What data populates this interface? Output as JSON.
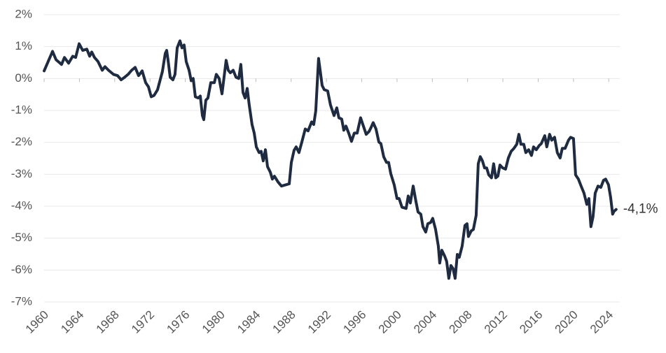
{
  "chart_data": {
    "type": "line",
    "x": [
      1960.0,
      1960.95,
      1961.35,
      1961.98,
      1962.3,
      1962.78,
      1963.25,
      1963.57,
      1963.97,
      1964.37,
      1964.84,
      1965.16,
      1965.4,
      1965.71,
      1966.11,
      1966.59,
      1966.9,
      1967.3,
      1967.86,
      1968.33,
      1968.73,
      1969.13,
      1969.52,
      1969.92,
      1970.32,
      1970.71,
      1971.11,
      1971.51,
      1971.83,
      1972.14,
      1972.46,
      1972.86,
      1973.41,
      1973.73,
      1973.89,
      1974.05,
      1974.29,
      1974.6,
      1974.84,
      1975.08,
      1975.4,
      1975.63,
      1975.87,
      1976.11,
      1976.43,
      1976.67,
      1976.9,
      1977.14,
      1977.46,
      1977.7,
      1977.94,
      1978.1,
      1978.33,
      1978.57,
      1978.89,
      1979.29,
      1979.52,
      1979.84,
      1980.16,
      1980.63,
      1980.87,
      1981.11,
      1981.43,
      1981.75,
      1982.06,
      1982.3,
      1982.54,
      1982.78,
      1983.02,
      1983.25,
      1983.57,
      1983.81,
      1984.05,
      1984.37,
      1984.6,
      1984.84,
      1985.08,
      1985.32,
      1985.63,
      1985.87,
      1986.11,
      1986.51,
      1986.9,
      1987.38,
      1987.78,
      1988.02,
      1988.33,
      1988.57,
      1988.89,
      1989.21,
      1989.6,
      1989.92,
      1990.32,
      1990.56,
      1990.79,
      1991.11,
      1991.35,
      1991.51,
      1991.75,
      1992.14,
      1992.46,
      1992.86,
      1993.17,
      1993.41,
      1993.73,
      1993.97,
      1994.21,
      1994.52,
      1994.84,
      1995.16,
      1995.48,
      1995.87,
      1996.19,
      1996.51,
      1996.83,
      1997.06,
      1997.3,
      1997.62,
      1997.94,
      1998.17,
      1998.49,
      1998.81,
      1999.05,
      1999.29,
      1999.68,
      2000.0,
      2000.24,
      2000.56,
      2001.03,
      2001.27,
      2001.51,
      2001.83,
      2002.14,
      2002.38,
      2002.7,
      2002.94,
      2003.25,
      2003.49,
      2003.81,
      2004.05,
      2004.37,
      2004.68,
      2004.84,
      2005.08,
      2005.4,
      2005.63,
      2005.87,
      2006.11,
      2006.35,
      2006.59,
      2006.83,
      2007.06,
      2007.38,
      2007.7,
      2007.94,
      2008.1,
      2008.41,
      2008.65,
      2008.97,
      2009.21,
      2009.44,
      2009.68,
      2009.92,
      2010.16,
      2010.4,
      2010.71,
      2010.95,
      2011.19,
      2011.43,
      2011.67,
      2011.98,
      2012.3,
      2012.62,
      2012.94,
      2013.25,
      2013.57,
      2013.81,
      2014.05,
      2014.37,
      2014.6,
      2014.92,
      2015.24,
      2015.48,
      2015.79,
      2016.11,
      2016.35,
      2016.75,
      2016.98,
      2017.3,
      2017.54,
      2017.86,
      2018.17,
      2018.49,
      2018.73,
      2019.05,
      2019.44,
      2019.68,
      2020.0,
      2020.24,
      2020.56,
      2020.87,
      2021.19,
      2021.51,
      2021.75,
      2021.98,
      2022.22,
      2022.46,
      2022.78,
      2023.1,
      2023.41,
      2023.65,
      2023.97,
      2024.21,
      2024.44,
      2024.6,
      2024.84
    ],
    "values": [
      0.24,
      0.85,
      0.59,
      0.44,
      0.66,
      0.48,
      0.7,
      0.66,
      1.09,
      0.88,
      0.92,
      0.7,
      0.83,
      0.66,
      0.53,
      0.26,
      0.37,
      0.26,
      0.13,
      0.09,
      -0.04,
      0.04,
      0.13,
      0.26,
      0.35,
      0.09,
      0.24,
      -0.13,
      -0.26,
      -0.57,
      -0.53,
      -0.35,
      0.22,
      0.79,
      0.88,
      0.57,
      0.04,
      -0.04,
      0.13,
      0.96,
      1.18,
      0.96,
      1.05,
      0.53,
      0.26,
      -0.07,
      0,
      -0.57,
      -0.61,
      -0.55,
      -1.16,
      -1.29,
      -0.68,
      -0.61,
      -0.13,
      -0.13,
      0.13,
      0,
      -0.48,
      0.57,
      0.26,
      0.18,
      0.26,
      0.04,
      0,
      0.44,
      -0.44,
      -0.61,
      -0.31,
      -0.83,
      -1.44,
      -1.71,
      -2.14,
      -2.32,
      -2.28,
      -2.58,
      -2.23,
      -2.76,
      -2.93,
      -3.15,
      -3.06,
      -3.24,
      -3.37,
      -3.33,
      -3.3,
      -2.63,
      -2.25,
      -2.14,
      -2.32,
      -1.99,
      -1.58,
      -1.64,
      -1.36,
      -1.44,
      -1.01,
      0.63,
      0.13,
      -0.22,
      -0.35,
      -0.39,
      -0.83,
      -1.16,
      -0.92,
      -1.23,
      -1.27,
      -1.62,
      -1.49,
      -1.71,
      -1.97,
      -1.71,
      -1.71,
      -1.23,
      -1.49,
      -1.75,
      -1.66,
      -1.53,
      -1.38,
      -1.58,
      -1.99,
      -2.04,
      -2.45,
      -2.63,
      -2.63,
      -2.98,
      -3.33,
      -3.76,
      -3.76,
      -4.03,
      -4.07,
      -3.68,
      -3.9,
      -3.37,
      -3.85,
      -4.18,
      -4.25,
      -4.64,
      -4.81,
      -4.55,
      -4.51,
      -4.38,
      -4.73,
      -5.25,
      -5.78,
      -5.38,
      -5.56,
      -5.73,
      -6.26,
      -5.86,
      -5.95,
      -6.26,
      -5.51,
      -5.6,
      -5.25,
      -4.6,
      -4.55,
      -4.95,
      -4.77,
      -4.73,
      -4.29,
      -2.67,
      -2.45,
      -2.58,
      -2.8,
      -2.8,
      -3.02,
      -3.11,
      -2.67,
      -3.11,
      -3.06,
      -2.71,
      -2.8,
      -2.84,
      -2.49,
      -2.28,
      -2.19,
      -2.06,
      -1.75,
      -2.06,
      -2.06,
      -2.32,
      -2.23,
      -2.41,
      -2.14,
      -2.23,
      -2.1,
      -2.04,
      -1.79,
      -2.14,
      -1.75,
      -1.93,
      -1.84,
      -2.32,
      -2.49,
      -2.19,
      -2.19,
      -1.93,
      -1.84,
      -1.88,
      -3.02,
      -3.15,
      -3.37,
      -3.59,
      -3.94,
      -3.76,
      -4.64,
      -4.33,
      -3.59,
      -3.37,
      -3.41,
      -3.19,
      -3.15,
      -3.33,
      -3.72,
      -4.25,
      -4.16,
      -4.1
    ],
    "color": "#1e2b40",
    "annotation": "-4,1%",
    "xlim": [
      1960,
      2025.25
    ],
    "xticks": [
      1960,
      1964,
      1968,
      1972,
      1976,
      1980,
      1984,
      1988,
      1992,
      1996,
      2000,
      2004,
      2008,
      2012,
      2016,
      2020,
      2024
    ],
    "ylim": [
      -7,
      2
    ],
    "yticks": [
      {
        "value": 2,
        "label": "2%"
      },
      {
        "value": 1,
        "label": "1%"
      },
      {
        "value": 0,
        "label": "0%"
      },
      {
        "value": -1,
        "label": "-1%"
      },
      {
        "value": -2,
        "label": "-2%"
      },
      {
        "value": -3,
        "label": "-3%"
      },
      {
        "value": -4,
        "label": "-4%"
      },
      {
        "value": -5,
        "label": "-5%"
      },
      {
        "value": -6,
        "label": "-6%"
      },
      {
        "value": -7,
        "label": "-7%"
      }
    ],
    "grid": true
  }
}
